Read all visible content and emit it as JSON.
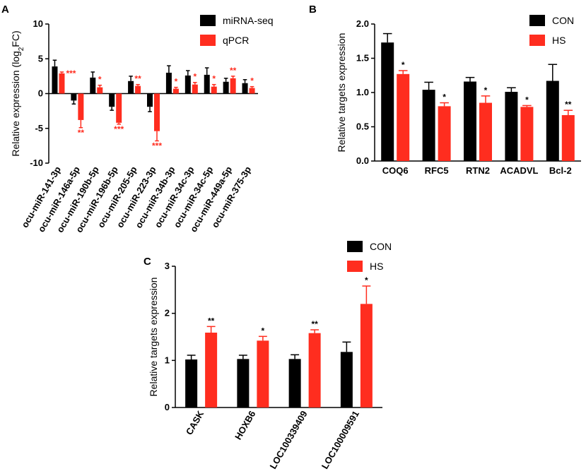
{
  "colors": {
    "con": "#000000",
    "hs": "#ff2d1f",
    "axis": "#000000"
  },
  "chart_data": [
    {
      "panel": "A",
      "type": "bar",
      "ylabel": "Relative expression (log",
      "ylabel_sub": "2",
      "ylabel_end": "FC)",
      "ylim": [
        -10,
        10
      ],
      "yticks": [
        -10,
        -5,
        0,
        5,
        10
      ],
      "categories": [
        "ocu-miR-141-3p",
        "ocu-miR-146a-5p",
        "ocu-miR-190b-5p",
        "ocu-miR-196b-5p",
        "ocu-miR-205-5p",
        "ocu-miR-223-3p",
        "ocu-miR-34b-3p",
        "ocu-miR-34c-3p",
        "ocu-miR-34c-5p",
        "ocu-miR-449a-5p",
        "ocu-miR-375-3p"
      ],
      "legend": [
        "miRNA-seq",
        "qPCR"
      ],
      "series": [
        {
          "name": "miRNA-seq",
          "values": [
            3.9,
            -1.0,
            2.3,
            -1.9,
            1.8,
            -1.9,
            3.0,
            2.6,
            2.7,
            1.7,
            1.5
          ],
          "errors": [
            0.9,
            0.5,
            0.8,
            0.5,
            0.7,
            0.7,
            1.0,
            0.7,
            1.0,
            0.5,
            0.5
          ]
        },
        {
          "name": "qPCR",
          "values": [
            2.9,
            -3.8,
            0.9,
            -4.2,
            1.1,
            -5.4,
            0.7,
            1.3,
            1.0,
            2.2,
            0.8
          ],
          "errors": [
            0.2,
            1.1,
            0.3,
            0.2,
            0.2,
            1.4,
            0.2,
            0.3,
            0.3,
            0.3,
            0.2
          ]
        }
      ],
      "significance": [
        "***",
        "**",
        "*",
        "***",
        "**",
        "***",
        "*",
        "*",
        "*",
        "**",
        "*"
      ]
    },
    {
      "panel": "B",
      "type": "bar",
      "ylabel": "Relative targets expression",
      "ylim": [
        0,
        2.0
      ],
      "yticks": [
        "0.0",
        "0.5",
        "1.0",
        "1.5",
        "2.0"
      ],
      "categories": [
        "COQ6",
        "RFC5",
        "RTN2",
        "ACADVL",
        "Bcl-2"
      ],
      "legend": [
        "CON",
        "HS"
      ],
      "series": [
        {
          "name": "CON",
          "values": [
            1.73,
            1.04,
            1.16,
            1.01,
            1.17
          ],
          "errors": [
            0.13,
            0.11,
            0.06,
            0.06,
            0.24
          ]
        },
        {
          "name": "HS",
          "values": [
            1.27,
            0.8,
            0.85,
            0.79,
            0.67
          ],
          "errors": [
            0.05,
            0.05,
            0.1,
            0.02,
            0.07
          ]
        }
      ],
      "significance": [
        "*",
        "*",
        "*",
        "*",
        "**"
      ]
    },
    {
      "panel": "C",
      "type": "bar",
      "ylabel": "Relative targets expression",
      "ylim": [
        0,
        3
      ],
      "yticks": [
        "0",
        "1",
        "2",
        "3"
      ],
      "categories": [
        "CASK",
        "HOXB6",
        "LOC100339409",
        "LOC100009591"
      ],
      "legend": [
        "CON",
        "HS"
      ],
      "series": [
        {
          "name": "CON",
          "values": [
            1.02,
            1.03,
            1.03,
            1.18
          ],
          "errors": [
            0.09,
            0.08,
            0.09,
            0.21
          ]
        },
        {
          "name": "HS",
          "values": [
            1.59,
            1.42,
            1.58,
            2.2
          ],
          "errors": [
            0.13,
            0.09,
            0.07,
            0.38
          ]
        }
      ],
      "significance": [
        "**",
        "*",
        "**",
        "*"
      ]
    }
  ]
}
